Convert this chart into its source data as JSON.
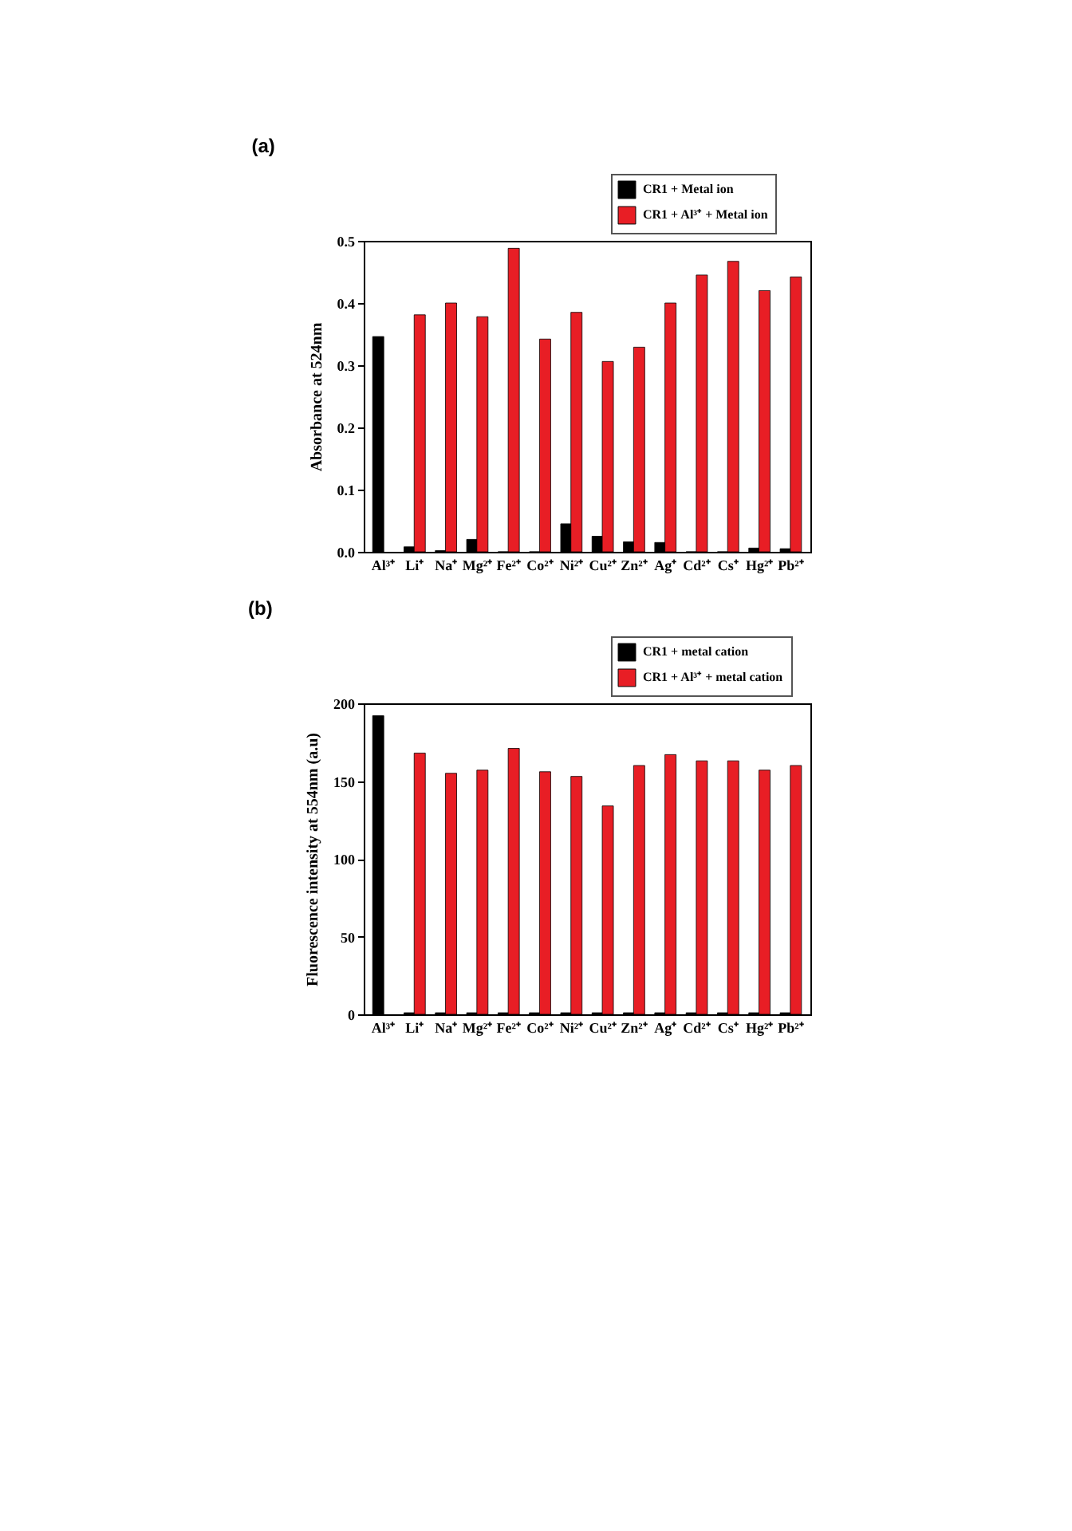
{
  "chart_data": [
    {
      "type": "bar",
      "title": "(a)",
      "ylabel": "Absorbance at 524nm",
      "categories": [
        "Al³⁺",
        "Li⁺",
        "Na⁺",
        "Mg²⁺",
        "Fe²⁺",
        "Co²⁺",
        "Ni²⁺",
        "Cu²⁺",
        "Zn²⁺",
        "Ag⁺",
        "Cd²⁺",
        "Cs⁺",
        "Hg²⁺",
        "Pb²⁺"
      ],
      "series": [
        {
          "name": "CR1 + Metal ion",
          "color": "#000000",
          "values": [
            0.346,
            0.008,
            0.002,
            0.02,
            0,
            0,
            0.045,
            0.025,
            0.016,
            0.015,
            0,
            0,
            0.006,
            0.005
          ]
        },
        {
          "name": "CR1 + Al³⁺ + Metal ion",
          "color": "#e81e25",
          "values": [
            null,
            0.381,
            0.4,
            0.378,
            0.488,
            0.342,
            0.385,
            0.306,
            0.329,
            0.4,
            0.445,
            0.467,
            0.42,
            0.442
          ]
        }
      ],
      "ylim": [
        0,
        0.5
      ],
      "yticks": [
        {
          "value": 0,
          "label": "0.0"
        },
        0.1,
        0.2,
        0.3,
        0.4,
        0.5
      ],
      "grid": false,
      "legend": "top right"
    },
    {
      "type": "bar",
      "title": "(b)",
      "ylabel": "Fluorescence intensity at 554nm (a.u)",
      "categories": [
        "Al³⁺",
        "Li⁺",
        "Na⁺",
        "Mg²⁺",
        "Fe²⁺",
        "Co²⁺",
        "Ni²⁺",
        "Cu²⁺",
        "Zn²⁺",
        "Ag⁺",
        "Cd²⁺",
        "Cs⁺",
        "Hg²⁺",
        "Pb²⁺"
      ],
      "series": [
        {
          "name": "CR1 + metal cation",
          "color": "#000000",
          "values": [
            192,
            1,
            1,
            1,
            1,
            1,
            1,
            1,
            1,
            1,
            1,
            1,
            1,
            1
          ]
        },
        {
          "name": "CR1 + Al³⁺ + metal cation",
          "color": "#e81e25",
          "values": [
            null,
            168,
            155,
            157,
            171,
            156,
            153,
            134,
            160,
            167,
            163,
            163,
            157,
            160
          ]
        }
      ],
      "ylim": [
        0,
        200
      ],
      "yticks": [
        0,
        50,
        100,
        150,
        200
      ],
      "grid": false,
      "legend": "top right"
    }
  ]
}
